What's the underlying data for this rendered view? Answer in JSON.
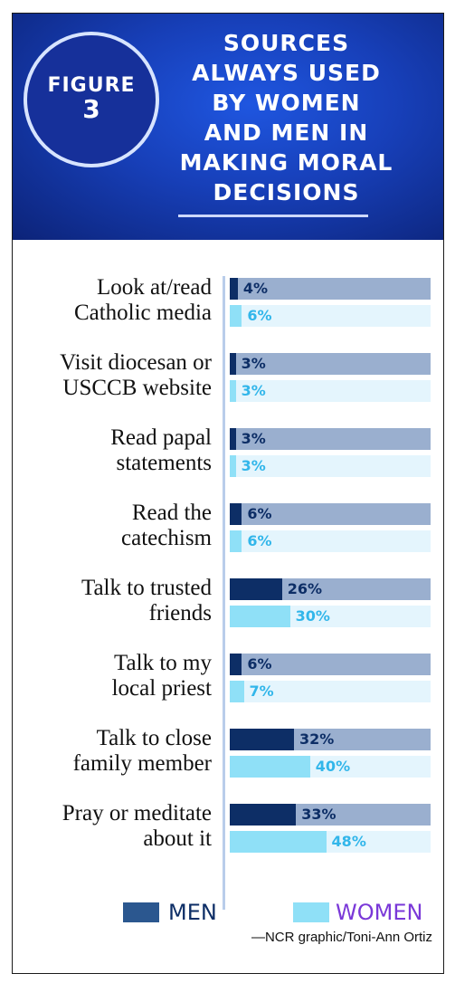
{
  "badge": {
    "line1": "FIGURE",
    "line2": "3"
  },
  "title_lines": [
    "SOURCES",
    "ALWAYS USED",
    "BY WOMEN",
    "AND MEN IN",
    "MAKING MORAL",
    "DECISIONS"
  ],
  "credit": "—NCR graphic/Toni-Ann Ortiz",
  "colors": {
    "men_bar": "#0d2e66",
    "men_track": "#9aafcf",
    "women_bar": "#8fe0f7",
    "women_track": "#e4f5fd",
    "women_text": "#32b6ea",
    "header_blue": "#173fb8",
    "legend_women_text": "#7a38d8"
  },
  "chart_data": {
    "type": "bar",
    "orientation": "horizontal",
    "title": "SOURCES ALWAYS USED BY WOMEN AND MEN IN MAKING MORAL DECISIONS",
    "categories": [
      [
        "Look at/read",
        "Catholic media"
      ],
      [
        "Visit diocesan or",
        "USCCB website"
      ],
      [
        "Read papal",
        "statements"
      ],
      [
        "Read the",
        "catechism"
      ],
      [
        "Talk to trusted",
        "friends"
      ],
      [
        "Talk to my",
        "local priest"
      ],
      [
        "Talk to close",
        "family member"
      ],
      [
        "Pray or meditate",
        "about it"
      ]
    ],
    "series": [
      {
        "name": "MEN",
        "values": [
          4,
          3,
          3,
          6,
          26,
          6,
          32,
          33
        ]
      },
      {
        "name": "WOMEN",
        "values": [
          6,
          3,
          3,
          6,
          30,
          7,
          40,
          48
        ]
      }
    ],
    "value_suffix": "%",
    "xlim": [
      0,
      100
    ],
    "legend": {
      "position": "bottom",
      "labels": [
        "MEN",
        "WOMEN"
      ]
    }
  }
}
